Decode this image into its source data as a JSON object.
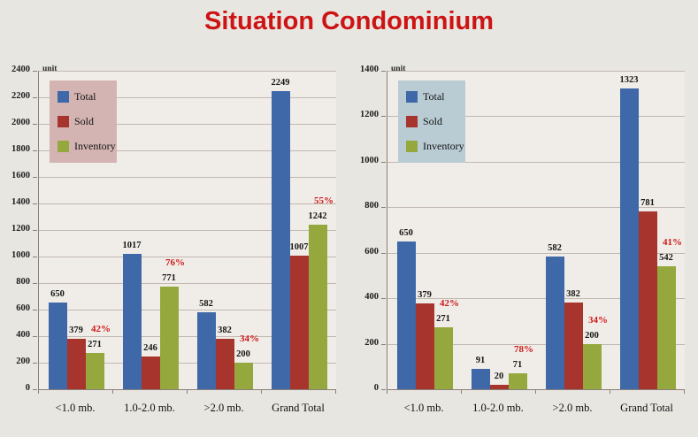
{
  "title": {
    "text": "Situation Condominium",
    "color": "#cc1414"
  },
  "layout_note_colors": {
    "page_bg": "#e8e6e1",
    "plot_bg": "#f0ede8",
    "axis": "#8a7f7a",
    "grid": "#b3a49f"
  },
  "chart_data": [
    {
      "type": "bar",
      "title": "",
      "xlabel": "",
      "ylabel": "unit",
      "unit_label": "unit",
      "ylim": [
        0,
        2400
      ],
      "ytick_step": 200,
      "grid": true,
      "legend_position": "upper-left-inside",
      "legend_bg": "#d3b4b2",
      "categories": [
        "<1.0 mb.",
        "1.0-2.0 mb.",
        ">2.0 mb.",
        "Grand Total"
      ],
      "series": [
        {
          "name": "Total",
          "color": "#3e68a8",
          "values": [
            650,
            1017,
            582,
            2249
          ]
        },
        {
          "name": "Sold",
          "color": "#a8342e",
          "values": [
            379,
            246,
            382,
            1007
          ]
        },
        {
          "name": "Inventory",
          "color": "#94a83e",
          "values": [
            271,
            771,
            200,
            1242
          ]
        }
      ],
      "sold_pct_labels": [
        "42%",
        "76%",
        "34%",
        "55%"
      ],
      "pct_color": "#cc1a1a"
    },
    {
      "type": "bar",
      "title": "",
      "xlabel": "",
      "ylabel": "unit",
      "unit_label": "unit",
      "ylim": [
        0,
        1400
      ],
      "ytick_step": 200,
      "grid": true,
      "legend_position": "upper-left-inside",
      "legend_bg": "#b9cbd3",
      "categories": [
        "<1.0 mb.",
        "1.0-2.0 mb.",
        ">2.0 mb.",
        "Grand Total"
      ],
      "series": [
        {
          "name": "Total",
          "color": "#3e68a8",
          "values": [
            650,
            91,
            582,
            1323
          ]
        },
        {
          "name": "Sold",
          "color": "#a8342e",
          "values": [
            379,
            20,
            382,
            781
          ]
        },
        {
          "name": "Inventory",
          "color": "#94a83e",
          "values": [
            271,
            71,
            200,
            542
          ]
        }
      ],
      "sold_pct_labels": [
        "42%",
        "78%",
        "34%",
        "41%"
      ],
      "pct_color": "#cc1a1a"
    }
  ]
}
